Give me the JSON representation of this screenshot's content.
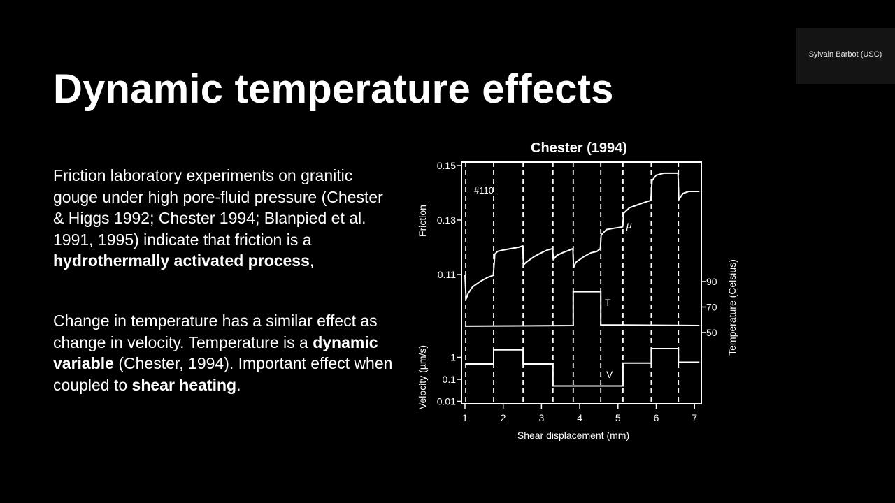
{
  "slide": {
    "title": "Dynamic temperature effects",
    "paragraphs": [
      [
        {
          "text": "Friction laboratory experiments on granitic gouge under high pore-fluid pressure (Chester & Higgs 1992; Chester 1994; Blanpied et al. 1991, 1995) indicate that friction is a ",
          "bold": false
        },
        {
          "text": "hydrothermally activated process",
          "bold": true
        },
        {
          "text": ",",
          "bold": false
        }
      ],
      [
        {
          "text": "Change in temperature has a similar effect as change in velocity. Temperature is a ",
          "bold": false
        },
        {
          "text": "dynamic variable",
          "bold": true
        },
        {
          "text": " (Chester, 1994). Important effect when coupled to ",
          "bold": false
        },
        {
          "text": "shear heating",
          "bold": true
        },
        {
          "text": ".",
          "bold": false
        }
      ]
    ]
  },
  "speaker": {
    "name": "Sylvain Barbot (USC)"
  },
  "chart_data": {
    "type": "line",
    "title": "Chester (1994)",
    "xlabel": "Shear displacement (mm)",
    "xlim": [
      0.95,
      7.2
    ],
    "x_ticks": [
      "1",
      "2",
      "3",
      "4",
      "5",
      "6",
      "7"
    ],
    "step_boundaries_mm": [
      1.02,
      1.75,
      2.52,
      3.3,
      3.83,
      4.55,
      5.13,
      5.87,
      6.58
    ],
    "annotation": "#110",
    "panels": [
      {
        "name": "friction",
        "ylabel": "Friction",
        "ylim": [
          0.1,
          0.151
        ],
        "y_ticks": [
          "0.15",
          "0.13",
          "0.11"
        ],
        "series": [
          {
            "name": "μ",
            "points": [
              [
                1.0,
                0.11
              ],
              [
                1.03,
                0.101
              ],
              [
                1.08,
                0.103
              ],
              [
                1.2,
                0.1055
              ],
              [
                1.4,
                0.1075
              ],
              [
                1.6,
                0.109
              ],
              [
                1.74,
                0.1097
              ],
              [
                1.78,
                0.1175
              ],
              [
                1.85,
                0.1185
              ],
              [
                2.0,
                0.119
              ],
              [
                2.2,
                0.1195
              ],
              [
                2.4,
                0.12
              ],
              [
                2.51,
                0.1205
              ],
              [
                2.53,
                0.1135
              ],
              [
                2.6,
                0.1145
              ],
              [
                2.8,
                0.1165
              ],
              [
                3.0,
                0.118
              ],
              [
                3.15,
                0.119
              ],
              [
                3.29,
                0.1195
              ],
              [
                3.31,
                0.1155
              ],
              [
                3.4,
                0.117
              ],
              [
                3.55,
                0.118
              ],
              [
                3.7,
                0.1188
              ],
              [
                3.82,
                0.1195
              ],
              [
                3.84,
                0.1125
              ],
              [
                3.9,
                0.1145
              ],
              [
                4.1,
                0.1165
              ],
              [
                4.3,
                0.118
              ],
              [
                4.45,
                0.1185
              ],
              [
                4.54,
                0.1195
              ],
              [
                4.56,
                0.1245
              ],
              [
                4.7,
                0.1265
              ],
              [
                4.9,
                0.127
              ],
              [
                5.12,
                0.1275
              ],
              [
                5.15,
                0.1325
              ],
              [
                5.3,
                0.1345
              ],
              [
                5.5,
                0.1355
              ],
              [
                5.7,
                0.1365
              ],
              [
                5.86,
                0.1372
              ],
              [
                5.89,
                0.1445
              ],
              [
                6.0,
                0.1465
              ],
              [
                6.2,
                0.1472
              ],
              [
                6.4,
                0.1472
              ],
              [
                6.57,
                0.1472
              ],
              [
                6.59,
                0.1375
              ],
              [
                6.7,
                0.1398
              ],
              [
                6.85,
                0.1405
              ],
              [
                7.13,
                0.1405
              ]
            ]
          }
        ]
      },
      {
        "name": "temperature",
        "ylabel": "Temperature (Celsius)",
        "ylim": [
          40,
          100
        ],
        "y_ticks": [
          "90",
          "70",
          "50"
        ],
        "series": [
          {
            "name": "T",
            "points": [
              [
                1.0,
                55
              ],
              [
                3.83,
                55.5
              ],
              [
                3.83,
                82
              ],
              [
                4.55,
                82
              ],
              [
                4.55,
                56
              ],
              [
                5.5,
                55.8
              ],
              [
                7.13,
                55.5
              ]
            ]
          }
        ]
      },
      {
        "name": "velocity",
        "ylabel": "Velocity (µm/s)",
        "ylim": [
          0.006,
          4
        ],
        "scale": "log",
        "y_ticks": [
          "1",
          "0.1",
          "0.01"
        ],
        "series": [
          {
            "name": "V",
            "points": [
              [
                1.02,
                0.5
              ],
              [
                1.75,
                0.5
              ],
              [
                1.75,
                2.2
              ],
              [
                2.52,
                2.2
              ],
              [
                2.52,
                0.5
              ],
              [
                3.3,
                0.5
              ],
              [
                3.3,
                0.05
              ],
              [
                5.13,
                0.05
              ],
              [
                5.13,
                0.55
              ],
              [
                5.87,
                0.55
              ],
              [
                5.87,
                2.5
              ],
              [
                6.58,
                2.5
              ],
              [
                6.58,
                0.6
              ],
              [
                7.13,
                0.6
              ]
            ]
          }
        ]
      }
    ]
  }
}
